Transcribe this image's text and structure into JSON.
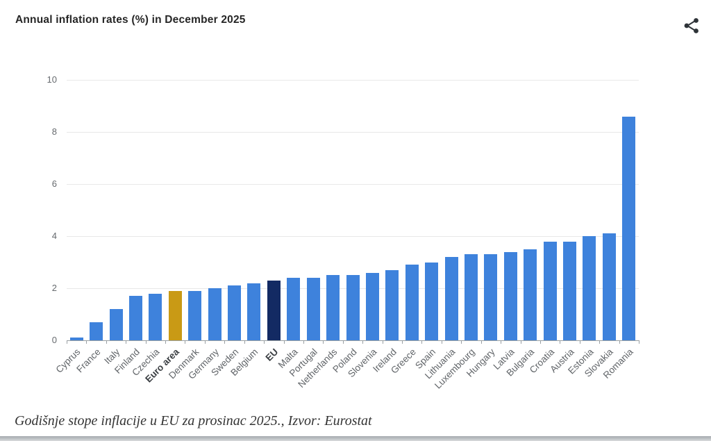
{
  "header": {
    "title": "Annual inflation rates (%) in December 2025",
    "share_icon": "share-network-icon",
    "share_icon_color": "#2e3338"
  },
  "chart_data": {
    "type": "bar",
    "title": "Annual inflation rates (%) in December 2025",
    "categories": [
      "Cyprus",
      "France",
      "Italy",
      "Finland",
      "Czechia",
      "Euro area",
      "Denmark",
      "Germany",
      "Sweden",
      "Belgium",
      "EU",
      "Malta",
      "Portugal",
      "Netherlands",
      "Poland",
      "Slovenia",
      "Ireland",
      "Greece",
      "Spain",
      "Lithuania",
      "Luxembourg",
      "Hungary",
      "Latvia",
      "Bulgaria",
      "Croatia",
      "Austria",
      "Estonia",
      "Slovakia",
      "Romania"
    ],
    "values": [
      0.1,
      0.7,
      1.2,
      1.7,
      1.8,
      1.9,
      1.9,
      2.0,
      2.1,
      2.2,
      2.3,
      2.4,
      2.4,
      2.5,
      2.5,
      2.6,
      2.7,
      2.9,
      3.0,
      3.2,
      3.3,
      3.3,
      3.4,
      3.5,
      3.8,
      3.8,
      4.0,
      4.1,
      8.6
    ],
    "xlabel": "",
    "ylabel": "",
    "ylim": [
      0,
      10
    ],
    "yticks": [
      0,
      2,
      4,
      6,
      8,
      10
    ],
    "grid": true,
    "legend_position": "none",
    "bar_color_default": "#3E82DC",
    "highlighted_bars": {
      "Euro area": "#C99A15",
      "EU": "#132A63"
    },
    "bold_categories": [
      "Euro area",
      "EU"
    ]
  },
  "footer": {
    "caption": "Godišnje stope inflacije u EU za prosinac 2025., Izvor: Eurostat",
    "logo_icon": "parallelogram-logo-icon",
    "logo_color": "#1B41C4"
  }
}
